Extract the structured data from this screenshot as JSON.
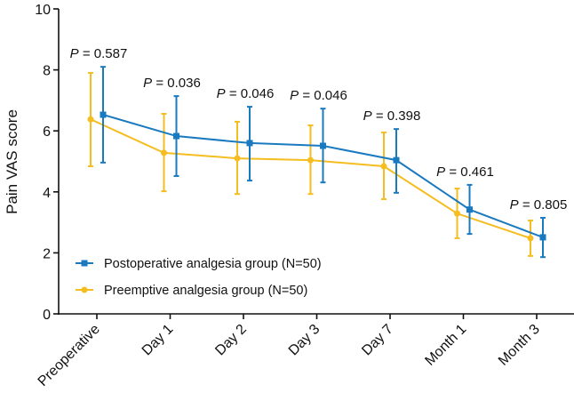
{
  "chart_data": {
    "type": "line",
    "title": "",
    "xlabel": "",
    "ylabel": "Pain VAS score",
    "ylim": [
      0,
      10
    ],
    "yticks": [
      0,
      2,
      4,
      6,
      8,
      10
    ],
    "grid": false,
    "legend_position": "bottom-left",
    "categories": [
      "Preoperative",
      "Day 1",
      "Day 2",
      "Day 3",
      "Day 7",
      "Month 1",
      "Month 3"
    ],
    "p_values": [
      "0.587",
      "0.036",
      "0.046",
      "0.046",
      "0.398",
      "0.461",
      "0.805"
    ],
    "p_label": "P",
    "series": [
      {
        "name": "Postoperative analgesia group (N=50)",
        "color": "#1a7abf",
        "marker": "square",
        "values": [
          6.53,
          5.83,
          5.6,
          5.51,
          5.04,
          3.42,
          2.51
        ],
        "upper": [
          8.1,
          7.14,
          6.79,
          6.73,
          6.06,
          4.23,
          3.15
        ],
        "lower": [
          4.96,
          4.52,
          4.37,
          4.31,
          3.97,
          2.62,
          1.86
        ]
      },
      {
        "name": "Preemptive analgesia group (N=50)",
        "color": "#f5bd1f",
        "marker": "circle",
        "values": [
          6.38,
          5.28,
          5.1,
          5.04,
          4.84,
          3.29,
          2.48
        ],
        "upper": [
          7.9,
          6.56,
          6.3,
          6.18,
          5.95,
          4.11,
          3.06
        ],
        "lower": [
          4.84,
          4.02,
          3.93,
          3.93,
          3.76,
          2.48,
          1.9
        ]
      }
    ]
  }
}
